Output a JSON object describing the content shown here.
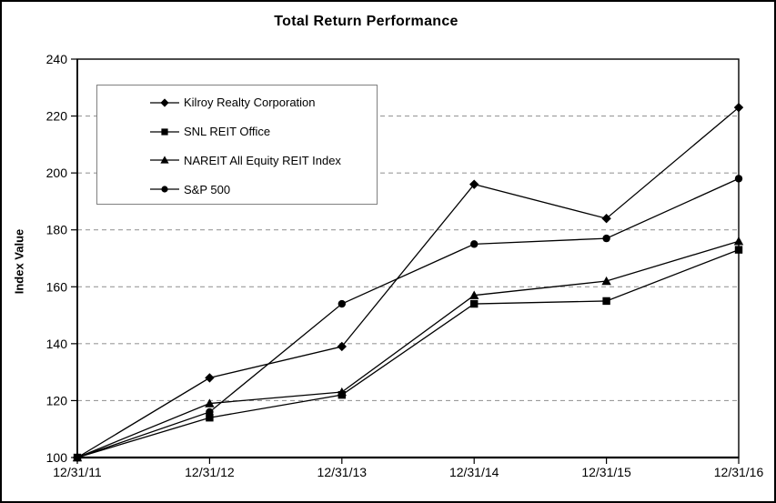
{
  "chart_data": {
    "type": "line",
    "title": "Total Return Performance",
    "xlabel": "",
    "ylabel": "Index Value",
    "categories": [
      "12/31/11",
      "12/31/12",
      "12/31/13",
      "12/31/14",
      "12/31/15",
      "12/31/16"
    ],
    "series": [
      {
        "name": "Kilroy Realty Corporation",
        "marker": "diamond",
        "values": [
          100,
          128,
          139,
          196,
          184,
          223
        ]
      },
      {
        "name": "SNL REIT Office",
        "marker": "square",
        "values": [
          100,
          114,
          122,
          154,
          155,
          173
        ]
      },
      {
        "name": "NAREIT All Equity REIT Index",
        "marker": "triangle",
        "values": [
          100,
          119,
          123,
          157,
          162,
          176
        ]
      },
      {
        "name": "S&P 500",
        "marker": "circle",
        "values": [
          100,
          116,
          154,
          175,
          177,
          198
        ]
      }
    ],
    "ylim": [
      100,
      240
    ],
    "ytick_step": 20,
    "grid": "horizontal-dashed",
    "legend_position": "top-left-inside",
    "line_color": "#000000",
    "grid_color": "#9b9b9b",
    "plot_border_color": "#000000",
    "legend_border_color": "#808080"
  }
}
